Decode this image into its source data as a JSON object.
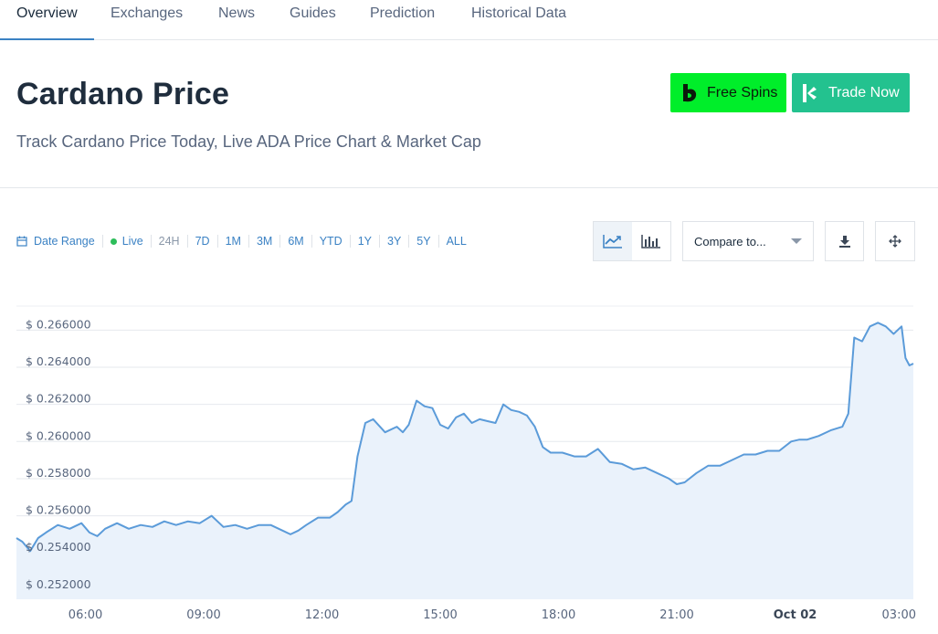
{
  "tabs": [
    {
      "label": "Overview",
      "active": true
    },
    {
      "label": "Exchanges",
      "active": false
    },
    {
      "label": "News",
      "active": false
    },
    {
      "label": "Guides",
      "active": false
    },
    {
      "label": "Prediction",
      "active": false
    },
    {
      "label": "Historical Data",
      "active": false
    }
  ],
  "header": {
    "title": "Cardano Price",
    "subtitle": "Track Cardano Price Today, Live ADA Price Chart & Market Cap",
    "free_spins_label": "Free Spins",
    "trade_now_label": "Trade Now"
  },
  "colors": {
    "free_spins_bg": "#00ee2a",
    "trade_now_bg": "#23c28f",
    "accent": "#3b82c4",
    "line": "#5b9bd9",
    "area": "#eaf2fb",
    "live_dot": "#2dbd5a"
  },
  "range_bar": {
    "date_range_label": "Date Range",
    "live_label": "Live",
    "options": [
      "24H",
      "7D",
      "1M",
      "3M",
      "6M",
      "YTD",
      "1Y",
      "3Y",
      "5Y",
      "ALL"
    ],
    "selected": "24H"
  },
  "controls": {
    "compare_placeholder": "Compare to...",
    "icons": [
      "line-chart-icon",
      "bar-chart-icon",
      "download-icon",
      "expand-icon"
    ]
  },
  "chart_data": {
    "type": "area",
    "ylim": [
      0.2515,
      0.2673
    ],
    "y_ticks": [
      0.252,
      0.254,
      0.256,
      0.258,
      0.26,
      0.262,
      0.264,
      0.266
    ],
    "y_tick_labels": [
      "$ 0.252000",
      "$ 0.254000",
      "$ 0.256000",
      "$ 0.258000",
      "$ 0.260000",
      "$ 0.262000",
      "$ 0.264000",
      "$ 0.266000"
    ],
    "xlim": [
      4.25,
      27.0
    ],
    "x_ticks": [
      6,
      9,
      12,
      15,
      18,
      21,
      24,
      27
    ],
    "x_tick_labels": [
      "06:00",
      "09:00",
      "12:00",
      "15:00",
      "18:00",
      "21:00",
      "Oct 02",
      "03:00"
    ],
    "x_bold_ticks": [
      "Oct 02"
    ],
    "grid": true,
    "x": [
      4.25,
      4.4,
      4.6,
      4.8,
      5.0,
      5.3,
      5.6,
      5.9,
      6.1,
      6.3,
      6.5,
      6.8,
      7.1,
      7.4,
      7.7,
      8.0,
      8.3,
      8.6,
      8.9,
      9.2,
      9.5,
      9.8,
      10.1,
      10.4,
      10.7,
      11.0,
      11.2,
      11.4,
      11.6,
      11.9,
      12.2,
      12.4,
      12.6,
      12.75,
      12.9,
      13.1,
      13.3,
      13.6,
      13.9,
      14.05,
      14.2,
      14.4,
      14.6,
      14.8,
      15.0,
      15.2,
      15.4,
      15.6,
      15.8,
      16.0,
      16.2,
      16.4,
      16.6,
      16.8,
      17.0,
      17.2,
      17.4,
      17.6,
      17.8,
      18.1,
      18.4,
      18.7,
      19.0,
      19.3,
      19.6,
      19.9,
      20.2,
      20.5,
      20.8,
      21.0,
      21.2,
      21.5,
      21.8,
      22.1,
      22.4,
      22.7,
      23.0,
      23.3,
      23.6,
      23.9,
      24.1,
      24.3,
      24.6,
      24.9,
      25.2,
      25.35,
      25.5,
      25.7,
      25.9,
      26.1,
      26.3,
      26.5,
      26.7,
      26.8,
      26.9,
      27.0
    ],
    "y": [
      0.2548,
      0.2546,
      0.2541,
      0.2548,
      0.2551,
      0.2555,
      0.2553,
      0.2556,
      0.2551,
      0.2549,
      0.2553,
      0.2556,
      0.2553,
      0.2555,
      0.2554,
      0.2557,
      0.2555,
      0.2557,
      0.2556,
      0.256,
      0.2554,
      0.2555,
      0.2553,
      0.2555,
      0.2555,
      0.2552,
      0.255,
      0.2552,
      0.2555,
      0.2559,
      0.2559,
      0.2562,
      0.2566,
      0.2568,
      0.2592,
      0.261,
      0.2612,
      0.2605,
      0.2608,
      0.2605,
      0.2609,
      0.2622,
      0.2619,
      0.2618,
      0.2609,
      0.2607,
      0.2613,
      0.2615,
      0.261,
      0.2612,
      0.2611,
      0.261,
      0.262,
      0.2617,
      0.2616,
      0.2614,
      0.2608,
      0.2597,
      0.2594,
      0.2594,
      0.2592,
      0.2592,
      0.2596,
      0.2589,
      0.2588,
      0.2585,
      0.2586,
      0.2583,
      0.258,
      0.2577,
      0.2578,
      0.2583,
      0.2587,
      0.2587,
      0.259,
      0.2593,
      0.2593,
      0.2595,
      0.2595,
      0.26,
      0.2601,
      0.2601,
      0.2603,
      0.2606,
      0.2608,
      0.2615,
      0.2656,
      0.2654,
      0.2662,
      0.2664,
      0.2662,
      0.2658,
      0.2662,
      0.2645,
      0.2641,
      0.2642
    ]
  }
}
